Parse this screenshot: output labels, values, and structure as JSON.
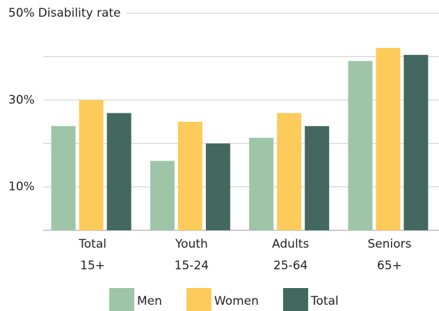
{
  "chart_data": {
    "type": "bar",
    "y_label": "Disability rate",
    "categories": [
      [
        "Total",
        "15+"
      ],
      [
        "Youth",
        "15-24"
      ],
      [
        "Adults",
        "25-64"
      ],
      [
        "Seniors",
        "65+"
      ]
    ],
    "series": [
      {
        "name": "Men",
        "color": "#9fc5a8",
        "values": [
          24,
          16,
          21.3,
          39
        ]
      },
      {
        "name": "Women",
        "color": "#fdcb5b",
        "values": [
          30,
          25,
          27,
          42
        ]
      },
      {
        "name": "Total",
        "color": "#426860",
        "values": [
          27,
          20,
          24,
          40.4
        ]
      }
    ],
    "ylim": [
      0,
      50
    ],
    "yticks": [
      {
        "value": 10,
        "label": "10%"
      },
      {
        "value": 30,
        "label": "30%"
      },
      {
        "value": 50,
        "label": "50%"
      }
    ],
    "yminor_ticks": [
      0,
      20,
      40
    ],
    "grid": true,
    "legend": "bottom"
  }
}
